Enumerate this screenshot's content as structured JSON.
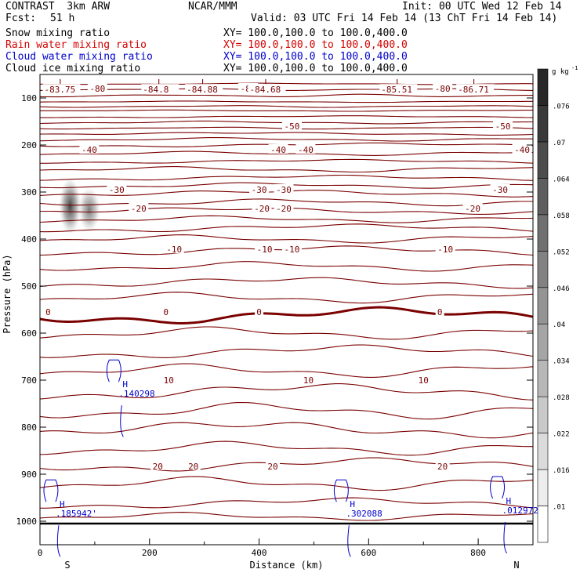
{
  "header": {
    "model": "CONTRAST  3km ARW",
    "org": "NCAR/MMM",
    "init": "Init: 00 UTC Wed 12 Feb 14",
    "fcst_label": "Fcst:",
    "fcst_value": "51 h",
    "valid": "Valid: 03 UTC Fri 14 Feb 14 (13 ChT Fri 14 Feb 14)"
  },
  "fields": [
    {
      "name": "Snow mixing ratio",
      "xy": "XY= 100.0,100.0 to 100.0,400.0",
      "color": "#000000"
    },
    {
      "name": "Rain water mixing ratio",
      "xy": "XY= 100.0,100.0 to 100.0,400.0",
      "color": "#d40000"
    },
    {
      "name": "Cloud water mixing ratio",
      "xy": "XY= 100.0,100.0 to 100.0,400.0",
      "color": "#0000cc"
    },
    {
      "name": "Cloud ice mixing ratio",
      "xy": "XY= 100.0,100.0 to 100.0,400.0",
      "color": "#000000"
    }
  ],
  "colorbar": {
    "unit": "g kg",
    "unit_exp": "-1",
    "labels": [
      ".01",
      ".016",
      ".022",
      ".028",
      ".034",
      ".04",
      ".046",
      ".052",
      ".058",
      ".064",
      ".07",
      ".076"
    ]
  },
  "colors": {
    "temperature_contour": "#7a0000",
    "cloud_water": "#0000cc",
    "axis": "#000000"
  },
  "chart_data": {
    "type": "contour_cross_section",
    "xlabel": "Distance (km)",
    "ylabel": "Pressure (hPa)",
    "x_ticks": [
      0,
      200,
      400,
      600,
      800
    ],
    "y_ticks": [
      100,
      200,
      300,
      400,
      500,
      600,
      700,
      800,
      900,
      1000
    ],
    "xlim": [
      0,
      900
    ],
    "ylim": [
      1050,
      50
    ],
    "end_labels": {
      "left": "S",
      "right": "N"
    },
    "temperature_contours": [
      {
        "label": "-80",
        "label_positions": [
          105,
          380,
          735
        ]
      },
      {
        "label": "-50",
        "label_positions": [
          460,
          845
        ]
      },
      {
        "label": "-40",
        "label_positions": [
          90,
          435,
          485,
          880
        ]
      },
      {
        "label": "-30",
        "label_positions": [
          140,
          400,
          445,
          840
        ]
      },
      {
        "label": "-20",
        "label_positions": [
          180,
          405,
          445,
          790
        ]
      },
      {
        "label": "-10",
        "label_positions": [
          245,
          410,
          460,
          740
        ]
      },
      {
        "label": "0",
        "label_positions": [
          15,
          230,
          400,
          730
        ]
      },
      {
        "label": "10",
        "label_positions": [
          235,
          490,
          700
        ]
      },
      {
        "label": "20",
        "label_positions": [
          215,
          280,
          425,
          735
        ]
      }
    ],
    "minima": [
      {
        "x": 25,
        "label": "-83.75"
      },
      {
        "x": 205,
        "label": "-84.8"
      },
      {
        "x": 285,
        "label": "-84.88"
      },
      {
        "x": 400,
        "label": "-84.68"
      },
      {
        "x": 640,
        "label": "-85.51"
      },
      {
        "x": 780,
        "label": "-86.71"
      }
    ],
    "maxima": [
      {
        "x": 155,
        "p": 712,
        "label": ".140298"
      },
      {
        "x": 40,
        "p": 967,
        "label": ".185942'"
      },
      {
        "x": 570,
        "p": 967,
        "label": ".302088"
      },
      {
        "x": 855,
        "p": 960,
        "label": ".012972"
      }
    ],
    "shaded_cloud_ice": [
      {
        "x": 55,
        "p_top": 270,
        "p_bottom": 390,
        "max": 0.07
      },
      {
        "x": 90,
        "p_top": 290,
        "p_bottom": 385,
        "max": 0.05
      }
    ],
    "surface_pressure": 1005
  }
}
